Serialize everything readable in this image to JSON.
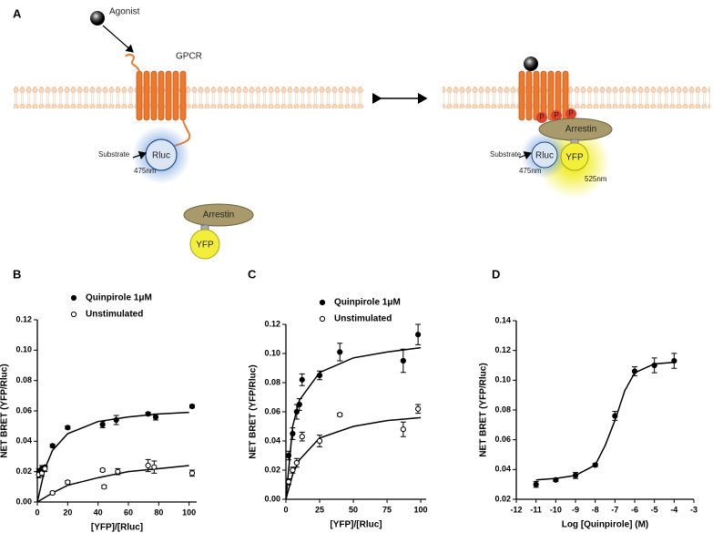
{
  "panel_labels": [
    "A",
    "B",
    "C",
    "D"
  ],
  "diagram": {
    "agonist": "Agonist",
    "receptor": "GPCR",
    "substrate_left": "Substrate",
    "rluc_left": "Rluc",
    "wavelength_left": "475nm",
    "arrestin_left": "Arrestin",
    "yfp_left": "YFP",
    "phospho": [
      "P",
      "P",
      "P"
    ],
    "arrestin_right": "Arrestin",
    "substrate_right": "Substrate",
    "rluc_right": "Rluc",
    "yfp_right": "YFP",
    "wavelength_right_rluc": "475nm",
    "wavelength_right_yfp": "525nm"
  },
  "chart_data": [
    {
      "type": "scatter",
      "x_label": "[YFP]/[Rluc]",
      "y_label": "NET BRET (YFP/Rluc)",
      "legend": "upper-left",
      "xlim": [
        0,
        105
      ],
      "xticks": [
        0,
        20,
        40,
        60,
        80,
        100
      ],
      "ylim": [
        0,
        0.12
      ],
      "yticks": [
        {
          "value": 0,
          "label": "0.00"
        },
        {
          "value": 0.02,
          "label": "0.02"
        },
        {
          "value": 0.04,
          "label": "0.04"
        },
        {
          "value": 0.06,
          "label": "0.06"
        },
        {
          "value": 0.08,
          "label": "0.08"
        },
        {
          "value": 0.1,
          "label": "0.10"
        },
        {
          "value": 0.12,
          "label": "0.12"
        }
      ],
      "series": [
        {
          "name": "Quinpirole 1μM",
          "color": "#000000",
          "marker": "filled",
          "x": [
            1,
            3,
            5,
            10,
            20,
            43,
            52,
            73,
            78,
            102
          ],
          "values": [
            0.02,
            0.022,
            0.023,
            0.037,
            0.049,
            0.051,
            0.054,
            0.058,
            0.056,
            0.063
          ],
          "errors": [
            0.002,
            0.002,
            0.001,
            0.001,
            0.001,
            0.002,
            0.003,
            0.001,
            0.002,
            0.001
          ],
          "fit": {
            "x": [
              0,
              5,
              10,
              20,
              40,
              60,
              80,
              100
            ],
            "values": [
              0,
              0.022,
              0.034,
              0.045,
              0.053,
              0.056,
              0.058,
              0.059
            ]
          }
        },
        {
          "name": "Unstimulated",
          "color": "#000000",
          "marker": "open",
          "x": [
            1,
            3,
            5,
            10,
            20,
            43,
            44,
            53,
            73,
            77,
            102
          ],
          "values": [
            0.018,
            0.019,
            0.022,
            0.006,
            0.013,
            0.021,
            0.01,
            0.02,
            0.024,
            0.023,
            0.019
          ],
          "errors": [
            0.002,
            0.002,
            0.002,
            0.001,
            0.001,
            0.001,
            0.001,
            0.002,
            0.004,
            0.004,
            0.002
          ],
          "fit": {
            "x": [
              0,
              10,
              20,
              40,
              60,
              80,
              100
            ],
            "values": [
              0,
              0.006,
              0.011,
              0.016,
              0.02,
              0.022,
              0.024
            ]
          }
        }
      ]
    },
    {
      "type": "scatter",
      "x_label": "[YFP]/[Rluc]",
      "y_label": "NET BRET (YFP/Rluc)",
      "legend": "upper-left",
      "xlim": [
        0,
        104
      ],
      "xticks": [
        0,
        25,
        50,
        75,
        100
      ],
      "ylim": [
        0,
        0.12
      ],
      "yticks": [
        {
          "value": 0,
          "label": "0.00"
        },
        {
          "value": 0.02,
          "label": "0.02"
        },
        {
          "value": 0.04,
          "label": "0.04"
        },
        {
          "value": 0.06,
          "label": "0.06"
        },
        {
          "value": 0.08,
          "label": "0.08"
        },
        {
          "value": 0.1,
          "label": "0.10"
        },
        {
          "value": 0.12,
          "label": "0.12"
        }
      ],
      "series": [
        {
          "name": "Quinpirole 1μM",
          "color": "#000000",
          "marker": "filled",
          "x": [
            2,
            5,
            8,
            10,
            12,
            25,
            40,
            87,
            98
          ],
          "values": [
            0.03,
            0.045,
            0.06,
            0.065,
            0.082,
            0.085,
            0.101,
            0.095,
            0.113
          ],
          "errors": [
            0.003,
            0.004,
            0.005,
            0.004,
            0.004,
            0.003,
            0.006,
            0.008,
            0.007
          ],
          "fit": {
            "x": [
              0,
              5,
              10,
              25,
              50,
              75,
              100
            ],
            "values": [
              0,
              0.05,
              0.068,
              0.087,
              0.097,
              0.101,
              0.104
            ]
          }
        },
        {
          "name": "Unstimulated",
          "color": "#000000",
          "marker": "open",
          "x": [
            2,
            5,
            8,
            12,
            25,
            40,
            87,
            98
          ],
          "values": [
            0.012,
            0.02,
            0.025,
            0.043,
            0.04,
            0.058,
            0.048,
            0.062
          ],
          "errors": [
            0.002,
            0.002,
            0.003,
            0.003,
            0.004,
            0.001,
            0.005,
            0.003
          ],
          "fit": {
            "x": [
              0,
              5,
              10,
              25,
              50,
              75,
              100
            ],
            "values": [
              0,
              0.017,
              0.027,
              0.042,
              0.05,
              0.054,
              0.056
            ]
          }
        }
      ]
    },
    {
      "type": "scatter",
      "x_label": "Log [Quinpirole] (M)",
      "y_label": "NET BRET (YFP/Rluc)",
      "xlim": [
        -12,
        -3
      ],
      "xticks": [
        -12,
        -11,
        -10,
        -9,
        -8,
        -7,
        -6,
        -5,
        -4,
        -3
      ],
      "ylim": [
        0.02,
        0.14
      ],
      "yticks": [
        {
          "value": 0.02,
          "label": "0.02"
        },
        {
          "value": 0.04,
          "label": "0.04"
        },
        {
          "value": 0.06,
          "label": "0.06"
        },
        {
          "value": 0.08,
          "label": "0.08"
        },
        {
          "value": 0.1,
          "label": "0.10"
        },
        {
          "value": 0.12,
          "label": "0.12"
        },
        {
          "value": 0.14,
          "label": "0.14"
        }
      ],
      "series": [
        {
          "color": "#000000",
          "marker": "filled",
          "x": [
            -11,
            -10,
            -9,
            -8,
            -7,
            -6,
            -5,
            -4
          ],
          "values": [
            0.03,
            0.033,
            0.036,
            0.043,
            0.076,
            0.106,
            0.11,
            0.113
          ],
          "errors": [
            0.002,
            0.001,
            0.002,
            0.001,
            0.003,
            0.003,
            0.005,
            0.005
          ],
          "fit": {
            "x": [
              -11,
              -10,
              -9,
              -8,
              -7.5,
              -7,
              -6.5,
              -6,
              -5,
              -4
            ],
            "values": [
              0.033,
              0.034,
              0.036,
              0.043,
              0.056,
              0.073,
              0.093,
              0.105,
              0.111,
              0.112
            ]
          }
        }
      ]
    }
  ]
}
